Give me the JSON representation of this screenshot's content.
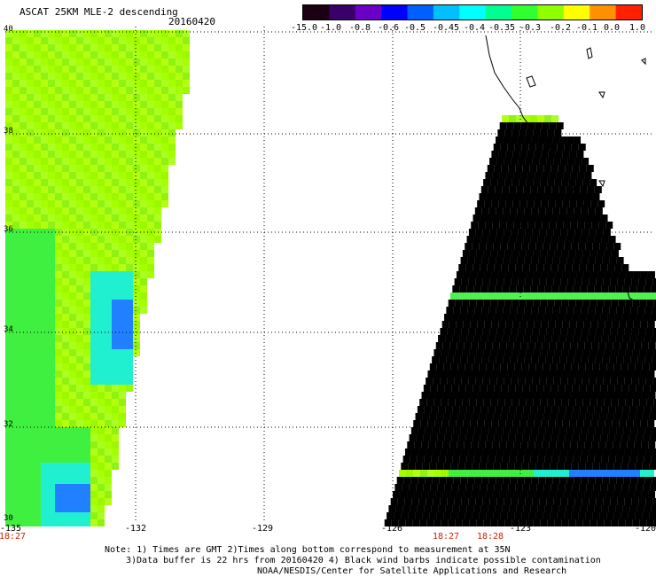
{
  "header": {
    "title": "ASCAT 25KM MLE-2 descending",
    "date": "20160420"
  },
  "colorbar": {
    "labels": [
      "-15.0",
      "-1.0",
      "-0.8",
      "-0.6",
      "-0.5",
      "-0.45",
      "-0.4",
      "-0.35",
      "-0.3",
      "-0.2",
      "-0.1",
      "0.0",
      "1.0"
    ],
    "colors": [
      "#1a0010",
      "#3a006a",
      "#6a00c8",
      "#0000ff",
      "#0060ff",
      "#00c0ff",
      "#00ffff",
      "#00ff90",
      "#30ff30",
      "#90ff00",
      "#ffff00",
      "#ff9000",
      "#ff2000"
    ]
  },
  "map": {
    "lat_labels": [
      "40",
      "38",
      "36",
      "34",
      "32",
      "30"
    ],
    "lon_labels": [
      "-135",
      "-132",
      "-129",
      "-126",
      "-123",
      "-120"
    ],
    "time_labels": [
      "18:27",
      "18:27",
      "18:28"
    ]
  },
  "note": {
    "line1": "Note: 1) Times are GMT 2)Times along bottom correspond to measurement at 35N",
    "line2": "3)Data buffer is 22 hrs from 20160420 4) Black wind barbs indicate possible contamination",
    "line3": "NOAA/NESDIS/Center for Satellite Applications and Research"
  }
}
